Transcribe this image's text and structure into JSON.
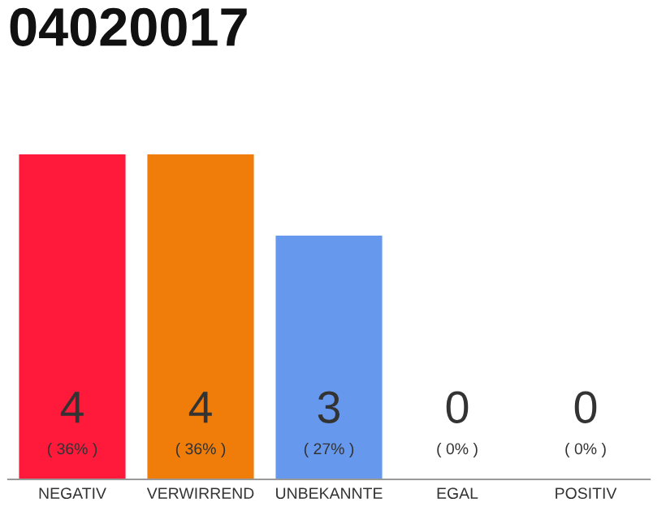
{
  "chart_data": {
    "type": "bar",
    "title": "04020017",
    "categories": [
      "NEGATIV",
      "VERWIRREND",
      "UNBEKANNTE",
      "EGAL",
      "POSITIV"
    ],
    "values": [
      4,
      4,
      3,
      0,
      0
    ],
    "colors": [
      "#ff1a3c",
      "#f07d0a",
      "#6699ee",
      "#aaaaaa",
      "#aaaaaa"
    ],
    "data_labels": true,
    "annotations": [
      "( 36% )",
      "( 36% )",
      "( 27% )",
      "( 0% )",
      "( 0% )"
    ],
    "grid": false,
    "tick_labels": "x"
  }
}
